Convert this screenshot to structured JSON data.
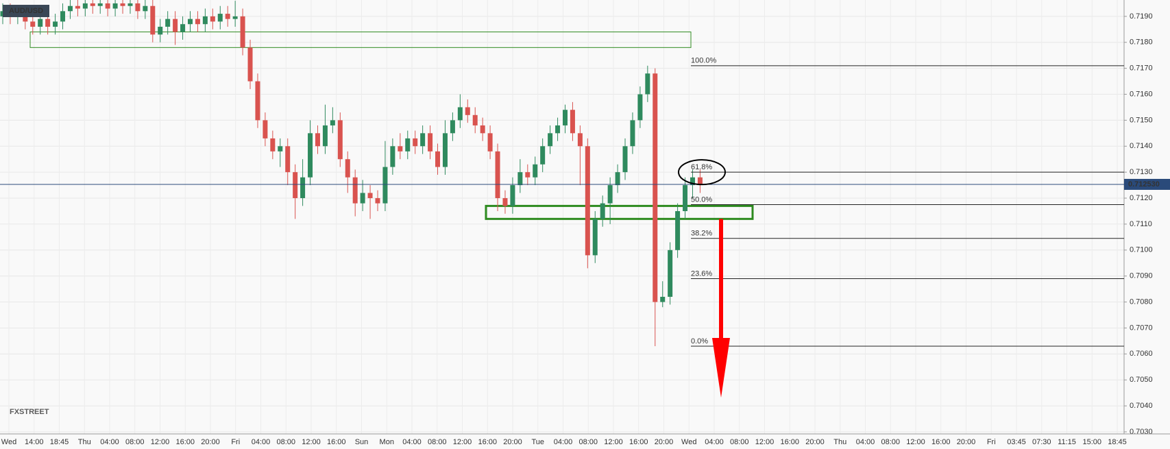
{
  "chart_data": {
    "type": "candlestick",
    "symbol": "AUD/USD",
    "open": [
      0.719,
      0.7192,
      0.719,
      0.7191,
      0.7188,
      0.7186,
      0.7189,
      0.7186,
      0.7188,
      0.7192,
      0.7194,
      0.7193,
      0.7195,
      0.7194,
      0.7195,
      0.7193,
      0.7195,
      0.7194,
      0.7195,
      0.7192,
      0.7194,
      0.7183,
      0.7186,
      0.7189,
      0.7184,
      0.7187,
      0.7189,
      0.7187,
      0.719,
      0.7188,
      0.7191,
      0.7189,
      0.719,
      0.7178,
      0.7165,
      0.715,
      0.7143,
      0.7138,
      0.714,
      0.713,
      0.712,
      0.7128,
      0.7145,
      0.714,
      0.7148,
      0.715,
      0.7135,
      0.7128,
      0.7118,
      0.7122,
      0.712,
      0.7118,
      0.7132,
      0.714,
      0.7138,
      0.7143,
      0.714,
      0.7145,
      0.7138,
      0.7132,
      0.7145,
      0.715,
      0.7155,
      0.7152,
      0.7148,
      0.7145,
      0.7138,
      0.712,
      0.7117,
      0.7125,
      0.713,
      0.7128,
      0.7133,
      0.714,
      0.7145,
      0.7148,
      0.7154,
      0.7145,
      0.714,
      0.7098,
      0.7112,
      0.7118,
      0.7125,
      0.713,
      0.714,
      0.715,
      0.716,
      0.7168,
      0.708,
      0.7082,
      0.71,
      0.7115,
      0.7125,
      0.7128
    ],
    "high": [
      0.7195,
      0.7195,
      0.7194,
      0.7194,
      0.7191,
      0.7192,
      0.7192,
      0.7191,
      0.7195,
      0.7197,
      0.7197,
      0.7198,
      0.7198,
      0.7198,
      0.7198,
      0.7198,
      0.7198,
      0.7198,
      0.7198,
      0.7197,
      0.7197,
      0.7189,
      0.7192,
      0.7192,
      0.719,
      0.7192,
      0.7192,
      0.7193,
      0.7193,
      0.7194,
      0.7194,
      0.7196,
      0.7193,
      0.7181,
      0.7168,
      0.7153,
      0.7146,
      0.7143,
      0.7143,
      0.7133,
      0.7135,
      0.715,
      0.7148,
      0.7156,
      0.7155,
      0.7153,
      0.7138,
      0.7131,
      0.7127,
      0.7125,
      0.7123,
      0.7142,
      0.7143,
      0.7145,
      0.7146,
      0.7146,
      0.7148,
      0.7148,
      0.7141,
      0.715,
      0.7153,
      0.716,
      0.7158,
      0.7155,
      0.7151,
      0.7148,
      0.7141,
      0.7123,
      0.7128,
      0.7135,
      0.7133,
      0.7136,
      0.7143,
      0.7148,
      0.7151,
      0.7156,
      0.7157,
      0.7148,
      0.7143,
      0.7115,
      0.7121,
      0.7128,
      0.7133,
      0.7143,
      0.7153,
      0.7163,
      0.7171,
      0.717,
      0.7088,
      0.7103,
      0.7118,
      0.7128,
      0.7131,
      0.7131
    ],
    "low": [
      0.7187,
      0.7187,
      0.7187,
      0.7185,
      0.7183,
      0.7183,
      0.7183,
      0.7183,
      0.7185,
      0.7189,
      0.719,
      0.719,
      0.7191,
      0.7191,
      0.719,
      0.719,
      0.7191,
      0.7191,
      0.7189,
      0.7189,
      0.718,
      0.718,
      0.7183,
      0.7179,
      0.7181,
      0.7184,
      0.7184,
      0.7184,
      0.7185,
      0.7185,
      0.7186,
      0.7186,
      0.7175,
      0.7162,
      0.7147,
      0.714,
      0.7135,
      0.7132,
      0.7125,
      0.7112,
      0.7117,
      0.7125,
      0.7137,
      0.7137,
      0.7145,
      0.7132,
      0.7122,
      0.7113,
      0.7115,
      0.7112,
      0.7115,
      0.7115,
      0.7129,
      0.7135,
      0.7135,
      0.7137,
      0.7137,
      0.7135,
      0.7129,
      0.7129,
      0.7142,
      0.7147,
      0.7149,
      0.7145,
      0.7142,
      0.7135,
      0.7115,
      0.7114,
      0.7114,
      0.7122,
      0.7125,
      0.7125,
      0.713,
      0.7137,
      0.7142,
      0.7145,
      0.7142,
      0.7125,
      0.7093,
      0.7095,
      0.7109,
      0.711,
      0.7122,
      0.7127,
      0.7137,
      0.7147,
      0.7157,
      0.7063,
      0.7078,
      0.7079,
      0.7097,
      0.7112,
      0.712,
      0.7122
    ],
    "close": [
      0.7192,
      0.719,
      0.7191,
      0.7188,
      0.7186,
      0.7189,
      0.7186,
      0.7188,
      0.7192,
      0.7194,
      0.7193,
      0.7195,
      0.7194,
      0.7195,
      0.7193,
      0.7195,
      0.7194,
      0.7195,
      0.7192,
      0.7194,
      0.7183,
      0.7186,
      0.7189,
      0.7184,
      0.7187,
      0.7189,
      0.7187,
      0.719,
      0.7188,
      0.7191,
      0.7189,
      0.719,
      0.7178,
      0.7165,
      0.715,
      0.7143,
      0.7138,
      0.714,
      0.713,
      0.712,
      0.7128,
      0.7145,
      0.714,
      0.7148,
      0.715,
      0.7135,
      0.7128,
      0.7118,
      0.7122,
      0.712,
      0.7118,
      0.7132,
      0.714,
      0.7138,
      0.7143,
      0.714,
      0.7145,
      0.7138,
      0.7132,
      0.7145,
      0.715,
      0.7155,
      0.7152,
      0.7148,
      0.7145,
      0.7138,
      0.712,
      0.7117,
      0.7125,
      0.713,
      0.7128,
      0.7133,
      0.714,
      0.7145,
      0.7148,
      0.7154,
      0.7145,
      0.714,
      0.7098,
      0.7112,
      0.7118,
      0.7125,
      0.713,
      0.714,
      0.715,
      0.716,
      0.7168,
      0.708,
      0.7082,
      0.71,
      0.7115,
      0.7125,
      0.7128,
      0.71253
    ],
    "colors": {
      "up": "#2f8a5e",
      "down": "#d9534f"
    },
    "ylim": [
      0.70292,
      0.71963
    ],
    "yticks": [
      {
        "value": 0.703,
        "label": "0.7030"
      },
      {
        "value": 0.704,
        "label": "0.7040"
      },
      {
        "value": 0.705,
        "label": "0.7050"
      },
      {
        "value": 0.706,
        "label": "0.7060"
      },
      {
        "value": 0.707,
        "label": "0.7070"
      },
      {
        "value": 0.708,
        "label": "0.7080"
      },
      {
        "value": 0.709,
        "label": "0.7090"
      },
      {
        "value": 0.71,
        "label": "0.7100"
      },
      {
        "value": 0.711,
        "label": "0.7110"
      },
      {
        "value": 0.712,
        "label": "0.7120"
      },
      {
        "value": 0.713,
        "label": "0.7130"
      },
      {
        "value": 0.714,
        "label": "0.7140"
      },
      {
        "value": 0.715,
        "label": "0.7150"
      },
      {
        "value": 0.716,
        "label": "0.7160"
      },
      {
        "value": 0.717,
        "label": "0.7170"
      },
      {
        "value": 0.718,
        "label": "0.7180"
      },
      {
        "value": 0.719,
        "label": "0.7190"
      }
    ],
    "x_labels": [
      "Wed",
      "14:00",
      "18:45",
      "Thu",
      "04:00",
      "08:00",
      "12:00",
      "16:00",
      "20:00",
      "Fri",
      "04:00",
      "08:00",
      "12:00",
      "16:00",
      "Sun",
      "Mon",
      "04:00",
      "08:00",
      "12:00",
      "16:00",
      "20:00",
      "Tue",
      "04:00",
      "08:00",
      "12:00",
      "16:00",
      "20:00",
      "Wed",
      "04:00",
      "08:00",
      "12:00",
      "16:00",
      "20:00",
      "Thu",
      "04:00",
      "08:00",
      "12:00",
      "16:00",
      "20:00",
      "Fri",
      "03:45",
      "07:30",
      "11:15",
      "15:00",
      "18:45"
    ],
    "last_price": {
      "value": 0.71253,
      "label": "0.712530"
    },
    "fib_levels": [
      {
        "label": "100.0%",
        "price": 0.7171
      },
      {
        "label": "61.8%",
        "price": 0.713
      },
      {
        "label": "50.0%",
        "price": 0.71175
      },
      {
        "label": "38.2%",
        "price": 0.71045
      },
      {
        "label": "23.6%",
        "price": 0.7089
      },
      {
        "label": "0.0%",
        "price": 0.7063
      }
    ],
    "zones": [
      {
        "top": 0.7184,
        "bottom": 0.7178
      },
      {
        "top": 0.7117,
        "bottom": 0.7112
      }
    ],
    "grid": true,
    "watermark": "FXSTREET"
  }
}
